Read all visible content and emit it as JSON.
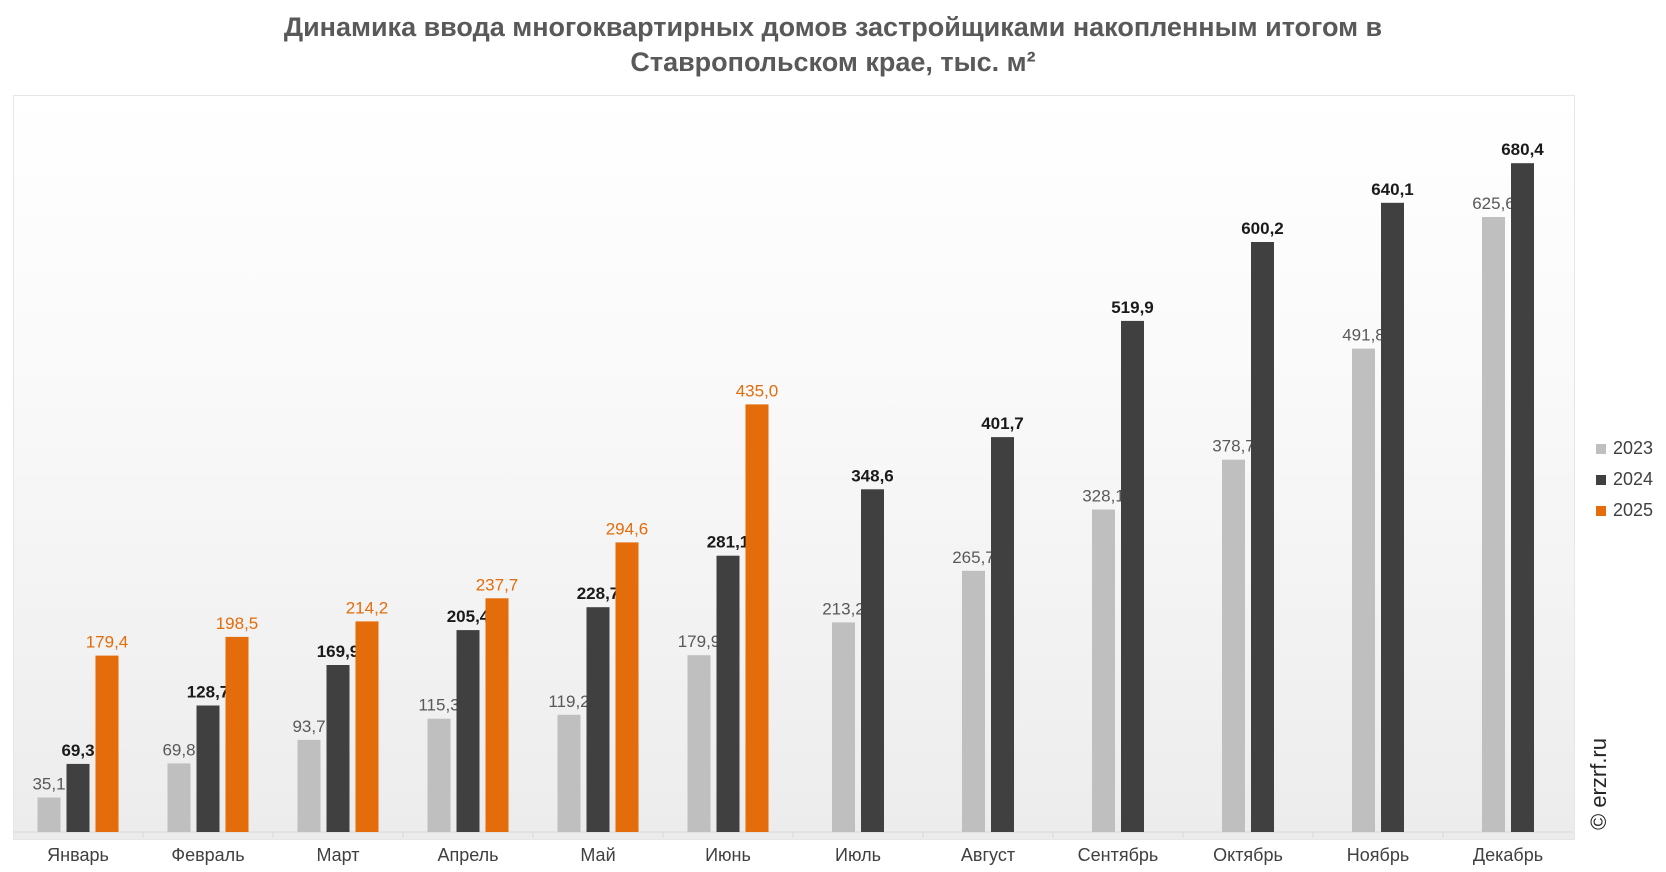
{
  "chart_data": {
    "type": "bar",
    "title_lines": [
      "Динамика ввода многоквартирных домов застройщиками накопленным итогом в",
      "Ставропольском крае, тыс. м²"
    ],
    "categories": [
      "Январь",
      "Февраль",
      "Март",
      "Апрель",
      "Май",
      "Июнь",
      "Июль",
      "Август",
      "Сентябрь",
      "Октябрь",
      "Ноябрь",
      "Декабрь"
    ],
    "series": [
      {
        "name": "2023",
        "color": "#bfbfbf",
        "label_color": "#595959",
        "label_weight": "normal",
        "values": [
          35.1,
          69.8,
          93.7,
          115.3,
          119.2,
          179.9,
          213.2,
          265.7,
          328.1,
          378.7,
          491.8,
          625.6
        ],
        "labels": [
          "35,1",
          "69,8",
          "93,7",
          "115,3",
          "119,2",
          "179,9",
          "213,2",
          "265,7",
          "328,1",
          "378,7",
          "491,8",
          "625,6"
        ]
      },
      {
        "name": "2024",
        "color": "#404040",
        "label_color": "#1a1a1a",
        "label_weight": "bold",
        "values": [
          69.3,
          128.7,
          169.9,
          205.4,
          228.7,
          281.1,
          348.6,
          401.7,
          519.9,
          600.2,
          640.1,
          680.4
        ],
        "labels": [
          "69,3",
          "128,7",
          "169,9",
          "205,4",
          "228,7",
          "281,1",
          "348,6",
          "401,7",
          "519,9",
          "600,2",
          "640,1",
          "680,4"
        ]
      },
      {
        "name": "2025",
        "color": "#e46c0a",
        "label_color": "#e46c0a",
        "label_weight": "normal",
        "values": [
          179.4,
          198.5,
          214.2,
          237.7,
          294.6,
          435.0,
          null,
          null,
          null,
          null,
          null,
          null
        ],
        "labels": [
          "179,4",
          "198,5",
          "214,2",
          "237,7",
          "294,6",
          "435,0",
          "",
          "",
          "",
          "",
          "",
          ""
        ]
      }
    ],
    "ylim": [
      0,
      780
    ],
    "grid": false,
    "legend_position": "right",
    "watermark": "© erzrf.ru"
  }
}
